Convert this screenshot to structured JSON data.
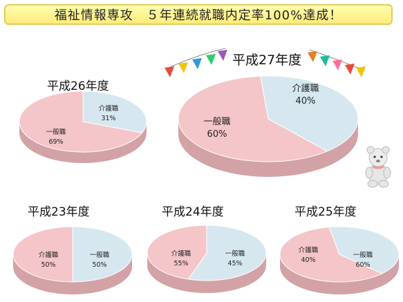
{
  "banner": {
    "title": "福祉情報専攻　５年連続就職内定率100%達成！"
  },
  "colors": {
    "care": "#d6e7f0",
    "care_side": "#a9bccb",
    "general": "#f4c6c9",
    "general_side": "#d2a2a6",
    "banner_bg": "#fff3a0"
  },
  "chart_data": [
    {
      "type": "pie",
      "title": "平成27年度",
      "slices": [
        {
          "label": "介護職",
          "value": 40,
          "display": "40%"
        },
        {
          "label": "一般職",
          "value": 60,
          "display": "60%"
        }
      ]
    },
    {
      "type": "pie",
      "title": "平成26年度",
      "slices": [
        {
          "label": "介護職",
          "value": 31,
          "display": "31%"
        },
        {
          "label": "一般職",
          "value": 69,
          "display": "69%"
        }
      ]
    },
    {
      "type": "pie",
      "title": "平成23年度",
      "slices": [
        {
          "label": "介護職",
          "value": 50,
          "display": "50%"
        },
        {
          "label": "一般職",
          "value": 50,
          "display": "50%"
        }
      ]
    },
    {
      "type": "pie",
      "title": "平成24年度",
      "slices": [
        {
          "label": "介護職",
          "value": 55,
          "display": "55%"
        },
        {
          "label": "一般職",
          "value": 45,
          "display": "45%"
        }
      ]
    },
    {
      "type": "pie",
      "title": "平成25年度",
      "slices": [
        {
          "label": "介護職",
          "value": 40,
          "display": "40%"
        },
        {
          "label": "一般職",
          "value": 60,
          "display": "60%"
        }
      ]
    }
  ]
}
